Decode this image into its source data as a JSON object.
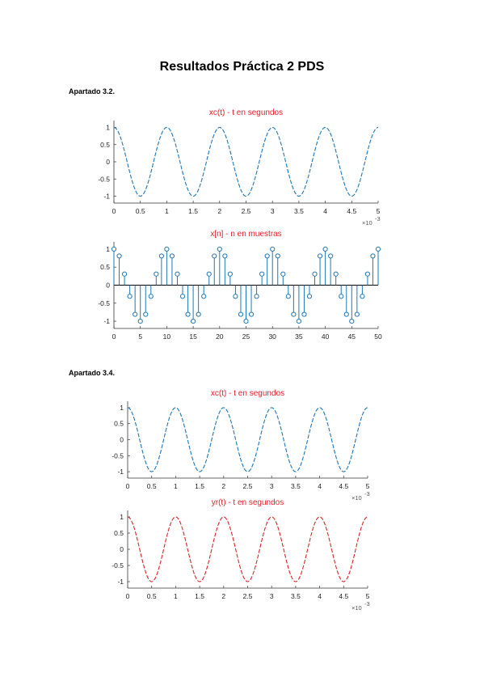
{
  "document": {
    "title": "Resultados Práctica 2 PDS",
    "sections": [
      {
        "label": "Apartado 3.2."
      },
      {
        "label": "Apartado 3.4."
      }
    ]
  },
  "colors": {
    "blue": "#1f77b4",
    "red": "#d62728",
    "title_red": "#e8202a"
  },
  "chart_data": [
    {
      "type": "line",
      "title": "xc(t) - t en segundos",
      "function": "cos(2*pi*1000*t)",
      "x_range": [
        0,
        0.005
      ],
      "ylim": [
        -1.2,
        1.2
      ],
      "xticks": [
        "0",
        "0.5",
        "1",
        "1.5",
        "2",
        "2.5",
        "3",
        "3.5",
        "4",
        "4.5",
        "5"
      ],
      "yticks": [
        "1",
        "0.5",
        "0",
        "-0.5",
        "-1"
      ],
      "x_exponent": "×10",
      "x_exponent_power": "-3",
      "series": [
        {
          "color": "#1f77b4",
          "style": "dashed"
        }
      ]
    },
    {
      "type": "stem",
      "title": "x[n] - n en muestras",
      "function": "cos(2*pi*n/10)",
      "n_range": [
        0,
        50
      ],
      "ylim": [
        -1.2,
        1.2
      ],
      "xticks": [
        "0",
        "5",
        "10",
        "15",
        "20",
        "25",
        "30",
        "35",
        "40",
        "45",
        "50"
      ],
      "yticks": [
        "1",
        "0.5",
        "0",
        "-0.5",
        "-1"
      ],
      "series": [
        {
          "color": "#1f77b4"
        }
      ]
    },
    {
      "type": "line",
      "title": "xc(t) - t en segundos",
      "function": "cos(2*pi*1000*t)",
      "x_range": [
        0,
        0.005
      ],
      "ylim": [
        -1.2,
        1.2
      ],
      "xticks": [
        "0",
        "0.5",
        "1",
        "1.5",
        "2",
        "2.5",
        "3",
        "3.5",
        "4",
        "4.5",
        "5"
      ],
      "yticks": [
        "1",
        "0.5",
        "0",
        "-0.5",
        "-1"
      ],
      "x_exponent": "×10",
      "x_exponent_power": "-3",
      "series": [
        {
          "color": "#1f77b4",
          "style": "dashed"
        }
      ]
    },
    {
      "type": "line",
      "title": "yr(t) - t en segundos",
      "function": "cos(2*pi*1000*t)",
      "x_range": [
        0,
        0.005
      ],
      "ylim": [
        -1.2,
        1.2
      ],
      "xticks": [
        "0",
        "0.5",
        "1",
        "1.5",
        "2",
        "2.5",
        "3",
        "3.5",
        "4",
        "4.5",
        "5"
      ],
      "yticks": [
        "1",
        "0.5",
        "0",
        "-0.5",
        "-1"
      ],
      "x_exponent": "×10",
      "x_exponent_power": "-3",
      "series": [
        {
          "color": "#d62728",
          "style": "dashed"
        }
      ]
    }
  ]
}
